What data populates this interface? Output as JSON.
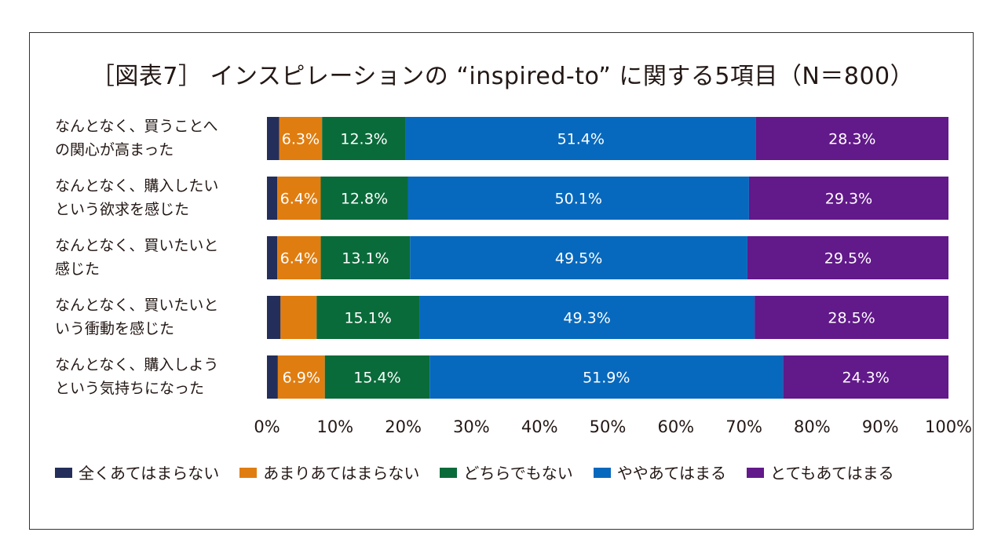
{
  "chart_data": {
    "type": "bar",
    "orientation": "horizontal",
    "stacked": true,
    "title": "［図表7］ インスピレーションの “inspired-to” に関する5項目（N＝800）",
    "categories": [
      "なんとなく、買うことへの関心が高まった",
      "なんとなく、購入したいという欲求を感じた",
      "なんとなく、買いたいと感じた",
      "なんとなく、買いたいという衝動を感じた",
      "なんとなく、購入しようという気持ちになった"
    ],
    "category_lines": [
      [
        "なんとなく、買うことへ",
        "の関心が高まった"
      ],
      [
        "なんとなく、購入したい",
        "という欲求を感じた"
      ],
      [
        "なんとなく、買いたいと",
        "感じた"
      ],
      [
        "なんとなく、買いたいと",
        "いう衝動を感じた"
      ],
      [
        "なんとなく、購入しよう",
        "という気持ちになった"
      ]
    ],
    "series": [
      {
        "name": "全くあてはまらない",
        "color": "#232e5a",
        "values": [
          1.8,
          1.5,
          1.5,
          2.0,
          1.6
        ],
        "labels": [
          "",
          "",
          "",
          "",
          ""
        ]
      },
      {
        "name": "あまりあてはまらない",
        "color": "#e07d10",
        "values": [
          6.3,
          6.4,
          6.4,
          5.3,
          6.9
        ],
        "labels": [
          "6.3%",
          "6.4%",
          "6.4%",
          "",
          "6.9%"
        ]
      },
      {
        "name": "どちらでもない",
        "color": "#0a6b3a",
        "values": [
          12.3,
          12.8,
          13.1,
          15.1,
          15.4
        ],
        "labels": [
          "12.3%",
          "12.8%",
          "13.1%",
          "15.1%",
          "15.4%"
        ]
      },
      {
        "name": "ややあてはまる",
        "color": "#0769bd",
        "values": [
          51.4,
          50.1,
          49.5,
          49.3,
          51.9
        ],
        "labels": [
          "51.4%",
          "50.1%",
          "49.5%",
          "49.3%",
          "51.9%"
        ]
      },
      {
        "name": "とてもあてはまる",
        "color": "#62198a",
        "values": [
          28.3,
          29.3,
          29.5,
          28.5,
          24.3
        ],
        "labels": [
          "28.3%",
          "29.3%",
          "29.5%",
          "28.5%",
          "24.3%"
        ]
      }
    ],
    "xlim": [
      0,
      100
    ],
    "xticks": [
      "0%",
      "10%",
      "20%",
      "30%",
      "40%",
      "50%",
      "60%",
      "70%",
      "80%",
      "90%",
      "100%"
    ],
    "grid": false,
    "legend_position": "bottom"
  }
}
